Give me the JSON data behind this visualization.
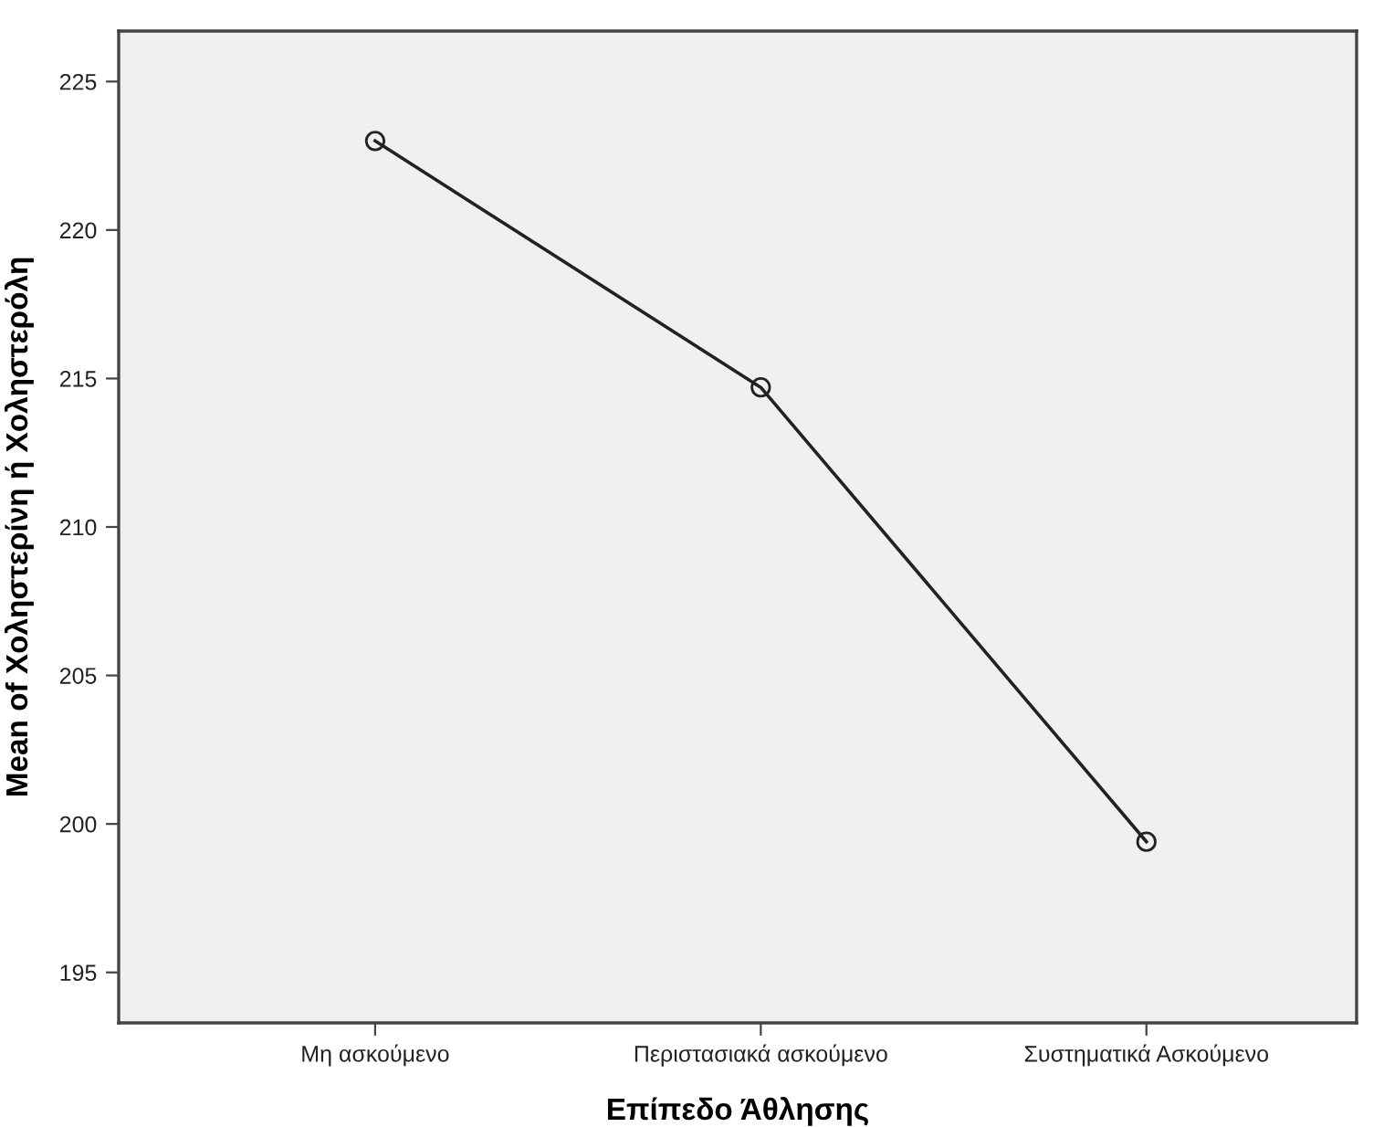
{
  "chart_data": {
    "type": "line",
    "xlabel": "Επίπεδο Άθλησης",
    "ylabel": "Mean of Χοληστερίνη ή Χοληστερόλη",
    "categories": [
      "Μη ασκούμενο",
      "Περιστασιακά ασκούμενο",
      "Συστηματικά Ασκούμενο"
    ],
    "series": [
      {
        "color": "#222222",
        "values": [
          223.0,
          214.7,
          199.4
        ]
      }
    ],
    "ylim": [
      193.3,
      226.7
    ],
    "yticks": [
      195,
      200,
      205,
      210,
      215,
      220,
      225
    ],
    "marker": "circle",
    "line_style": "solid",
    "grid": false,
    "legend": false
  }
}
